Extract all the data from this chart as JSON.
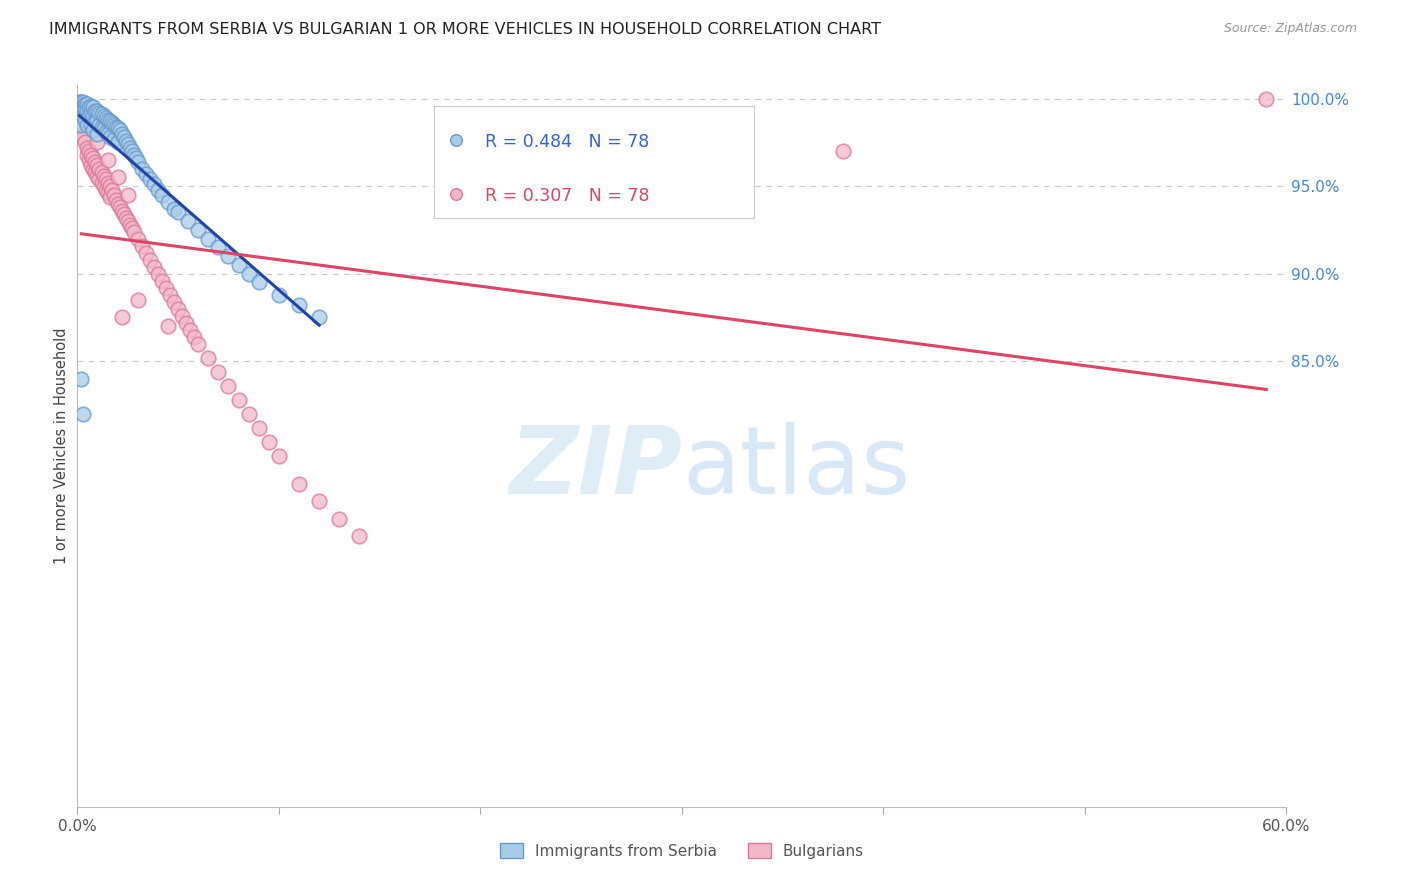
{
  "title": "IMMIGRANTS FROM SERBIA VS BULGARIAN 1 OR MORE VEHICLES IN HOUSEHOLD CORRELATION CHART",
  "source": "Source: ZipAtlas.com",
  "ylabel": "1 or more Vehicles in Household",
  "xlim": [
    0.0,
    0.6
  ],
  "ylim": [
    0.595,
    1.008
  ],
  "grid_color": "#c8c8c8",
  "background_color": "#ffffff",
  "serbia_color": "#a8cce8",
  "bulgarian_color": "#f2b8c8",
  "serbia_edge_color": "#6699cc",
  "bulgarian_edge_color": "#dd7799",
  "trend_serbia_color": "#2244aa",
  "trend_bulgarian_color": "#dd4466",
  "legend_serbia_label": "Immigrants from Serbia",
  "legend_bulgarian_label": "Bulgarians",
  "R_serbia": 0.484,
  "N_serbia": 78,
  "R_bulgarian": 0.307,
  "N_bulgarian": 78,
  "watermark_zip": "ZIP",
  "watermark_atlas": "atlas",
  "marker_size": 110,
  "serbia_x": [
    0.001,
    0.001,
    0.002,
    0.002,
    0.002,
    0.003,
    0.003,
    0.003,
    0.003,
    0.004,
    0.004,
    0.004,
    0.005,
    0.005,
    0.005,
    0.006,
    0.006,
    0.007,
    0.007,
    0.007,
    0.008,
    0.008,
    0.008,
    0.009,
    0.009,
    0.01,
    0.01,
    0.01,
    0.011,
    0.011,
    0.012,
    0.012,
    0.013,
    0.013,
    0.014,
    0.014,
    0.015,
    0.015,
    0.016,
    0.016,
    0.017,
    0.018,
    0.018,
    0.019,
    0.02,
    0.02,
    0.021,
    0.022,
    0.023,
    0.024,
    0.025,
    0.026,
    0.027,
    0.028,
    0.029,
    0.03,
    0.032,
    0.034,
    0.036,
    0.038,
    0.04,
    0.042,
    0.045,
    0.048,
    0.05,
    0.055,
    0.06,
    0.065,
    0.07,
    0.075,
    0.08,
    0.085,
    0.09,
    0.1,
    0.11,
    0.12,
    0.002,
    0.003
  ],
  "serbia_y": [
    0.998,
    0.996,
    0.998,
    0.995,
    0.985,
    0.998,
    0.996,
    0.994,
    0.99,
    0.997,
    0.994,
    0.988,
    0.997,
    0.993,
    0.985,
    0.995,
    0.99,
    0.996,
    0.992,
    0.985,
    0.995,
    0.99,
    0.982,
    0.993,
    0.987,
    0.993,
    0.988,
    0.98,
    0.992,
    0.985,
    0.991,
    0.984,
    0.99,
    0.983,
    0.989,
    0.981,
    0.988,
    0.98,
    0.987,
    0.978,
    0.986,
    0.985,
    0.977,
    0.984,
    0.983,
    0.975,
    0.982,
    0.98,
    0.978,
    0.976,
    0.974,
    0.972,
    0.97,
    0.968,
    0.966,
    0.964,
    0.96,
    0.957,
    0.954,
    0.951,
    0.948,
    0.945,
    0.941,
    0.937,
    0.935,
    0.93,
    0.925,
    0.92,
    0.915,
    0.91,
    0.905,
    0.9,
    0.895,
    0.888,
    0.882,
    0.875,
    0.84,
    0.82
  ],
  "bulgarian_x": [
    0.002,
    0.003,
    0.004,
    0.005,
    0.005,
    0.006,
    0.006,
    0.007,
    0.007,
    0.008,
    0.008,
    0.009,
    0.009,
    0.01,
    0.01,
    0.011,
    0.011,
    0.012,
    0.012,
    0.013,
    0.013,
    0.014,
    0.014,
    0.015,
    0.015,
    0.016,
    0.016,
    0.017,
    0.018,
    0.019,
    0.02,
    0.021,
    0.022,
    0.023,
    0.024,
    0.025,
    0.026,
    0.027,
    0.028,
    0.03,
    0.032,
    0.034,
    0.036,
    0.038,
    0.04,
    0.042,
    0.044,
    0.046,
    0.048,
    0.05,
    0.052,
    0.054,
    0.056,
    0.058,
    0.06,
    0.065,
    0.07,
    0.075,
    0.08,
    0.085,
    0.09,
    0.095,
    0.1,
    0.11,
    0.12,
    0.13,
    0.14,
    0.005,
    0.008,
    0.01,
    0.015,
    0.02,
    0.022,
    0.025,
    0.03,
    0.045,
    0.38,
    0.59
  ],
  "bulgarian_y": [
    0.98,
    0.978,
    0.975,
    0.972,
    0.968,
    0.97,
    0.965,
    0.968,
    0.962,
    0.966,
    0.96,
    0.964,
    0.958,
    0.962,
    0.956,
    0.96,
    0.954,
    0.958,
    0.952,
    0.956,
    0.95,
    0.954,
    0.948,
    0.952,
    0.946,
    0.95,
    0.944,
    0.948,
    0.945,
    0.942,
    0.94,
    0.938,
    0.936,
    0.934,
    0.932,
    0.93,
    0.928,
    0.926,
    0.924,
    0.92,
    0.916,
    0.912,
    0.908,
    0.904,
    0.9,
    0.896,
    0.892,
    0.888,
    0.884,
    0.88,
    0.876,
    0.872,
    0.868,
    0.864,
    0.86,
    0.852,
    0.844,
    0.836,
    0.828,
    0.82,
    0.812,
    0.804,
    0.796,
    0.78,
    0.77,
    0.76,
    0.75,
    0.995,
    0.985,
    0.975,
    0.965,
    0.955,
    0.875,
    0.945,
    0.885,
    0.87,
    0.97,
    1.0
  ]
}
